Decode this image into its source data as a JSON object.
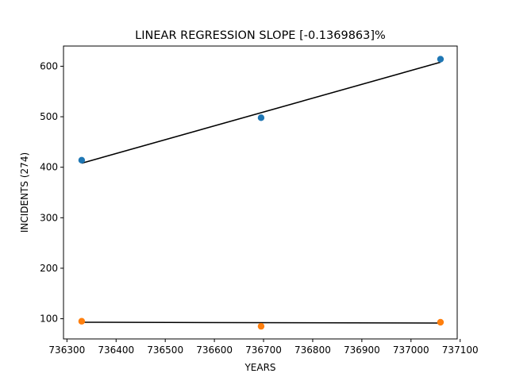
{
  "chart_data": {
    "type": "scatter",
    "title": "LINEAR REGRESSION SLOPE [-0.1369863]%",
    "xlabel": "YEARS",
    "ylabel": "INCIDENTS (274)",
    "xlim": [
      736293,
      737094
    ],
    "ylim": [
      60,
      640
    ],
    "xticks": [
      736300,
      736400,
      736500,
      736600,
      736700,
      736800,
      736900,
      737000,
      737100
    ],
    "yticks": [
      100,
      200,
      300,
      400,
      500,
      600
    ],
    "grid": false,
    "series": [
      {
        "points": [
          {
            "x": 736330,
            "y": 414
          },
          {
            "x": 736695,
            "y": 498
          },
          {
            "x": 737060,
            "y": 614
          }
        ],
        "color": "#1f77b4",
        "fit_line": [
          {
            "x": 736330,
            "y": 408
          },
          {
            "x": 737060,
            "y": 608
          }
        ]
      },
      {
        "points": [
          {
            "x": 736330,
            "y": 95
          },
          {
            "x": 736695,
            "y": 85
          },
          {
            "x": 737060,
            "y": 93
          }
        ],
        "color": "#ff7f0e",
        "fit_line": [
          {
            "x": 736330,
            "y": 93
          },
          {
            "x": 737060,
            "y": 91.5
          }
        ]
      }
    ],
    "fit_line_color": "#000000"
  }
}
